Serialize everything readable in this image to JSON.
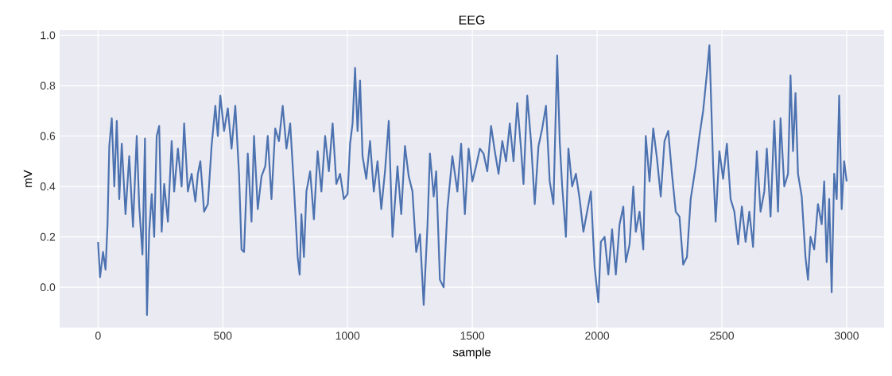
{
  "chart_data": {
    "type": "line",
    "title": "EEG",
    "xlabel": "sample",
    "ylabel": "mV",
    "xlim": [
      -154,
      3150
    ],
    "ylim": [
      -0.16,
      1.02
    ],
    "xticks": [
      0,
      500,
      1000,
      1500,
      2000,
      2500,
      3000
    ],
    "yticks": [
      {
        "value": 0,
        "label": "0.0"
      },
      {
        "value": 0.2,
        "label": "0.2"
      },
      {
        "value": 0.4,
        "label": "0.4"
      },
      {
        "value": 0.6,
        "label": "0.6"
      },
      {
        "value": 0.8,
        "label": "0.8"
      },
      {
        "value": 1.0,
        "label": "1.0"
      }
    ],
    "grid": true,
    "x": [
      0,
      8,
      20,
      30,
      38,
      45,
      55,
      65,
      75,
      85,
      95,
      110,
      125,
      140,
      155,
      165,
      178,
      188,
      196,
      205,
      215,
      225,
      235,
      245,
      255,
      265,
      280,
      295,
      305,
      320,
      335,
      345,
      360,
      375,
      390,
      400,
      410,
      425,
      440,
      455,
      470,
      480,
      490,
      505,
      520,
      535,
      550,
      565,
      575,
      585,
      600,
      615,
      625,
      640,
      655,
      670,
      680,
      695,
      710,
      725,
      740,
      755,
      770,
      785,
      800,
      808,
      815,
      825,
      835,
      850,
      865,
      880,
      895,
      910,
      925,
      940,
      955,
      970,
      985,
      1000,
      1010,
      1020,
      1030,
      1040,
      1050,
      1060,
      1075,
      1090,
      1105,
      1120,
      1135,
      1150,
      1165,
      1180,
      1200,
      1215,
      1230,
      1245,
      1260,
      1275,
      1290,
      1305,
      1320,
      1330,
      1345,
      1355,
      1370,
      1385,
      1400,
      1420,
      1440,
      1455,
      1470,
      1485,
      1500,
      1515,
      1530,
      1545,
      1560,
      1575,
      1590,
      1605,
      1620,
      1635,
      1650,
      1665,
      1680,
      1695,
      1705,
      1720,
      1735,
      1750,
      1765,
      1780,
      1795,
      1810,
      1825,
      1840,
      1850,
      1860,
      1875,
      1885,
      1900,
      1915,
      1930,
      1945,
      1960,
      1975,
      1990,
      2005,
      2015,
      2030,
      2045,
      2060,
      2075,
      2090,
      2105,
      2115,
      2130,
      2145,
      2155,
      2170,
      2185,
      2195,
      2210,
      2225,
      2240,
      2255,
      2270,
      2285,
      2300,
      2315,
      2330,
      2345,
      2360,
      2375,
      2395,
      2410,
      2425,
      2440,
      2450,
      2465,
      2475,
      2490,
      2505,
      2520,
      2535,
      2550,
      2565,
      2580,
      2595,
      2610,
      2625,
      2640,
      2655,
      2670,
      2680,
      2695,
      2710,
      2725,
      2735,
      2750,
      2765,
      2775,
      2785,
      2795,
      2805,
      2820,
      2835,
      2845,
      2855,
      2870,
      2885,
      2900,
      2910,
      2920,
      2930,
      2940,
      2950,
      2960,
      2970,
      2980,
      2990,
      3000
    ],
    "series": [
      {
        "color": "#4c72b0",
        "values": [
          0.18,
          0.04,
          0.14,
          0.07,
          0.25,
          0.56,
          0.67,
          0.4,
          0.66,
          0.35,
          0.57,
          0.29,
          0.52,
          0.24,
          0.6,
          0.32,
          0.13,
          0.59,
          -0.11,
          0.22,
          0.37,
          0.2,
          0.6,
          0.64,
          0.22,
          0.41,
          0.26,
          0.58,
          0.38,
          0.55,
          0.4,
          0.65,
          0.38,
          0.45,
          0.34,
          0.45,
          0.5,
          0.3,
          0.33,
          0.56,
          0.72,
          0.6,
          0.76,
          0.62,
          0.71,
          0.55,
          0.72,
          0.45,
          0.15,
          0.14,
          0.53,
          0.26,
          0.6,
          0.31,
          0.44,
          0.48,
          0.6,
          0.35,
          0.63,
          0.58,
          0.72,
          0.55,
          0.65,
          0.4,
          0.12,
          0.05,
          0.29,
          0.12,
          0.38,
          0.46,
          0.27,
          0.54,
          0.38,
          0.6,
          0.46,
          0.65,
          0.41,
          0.45,
          0.35,
          0.37,
          0.57,
          0.65,
          0.87,
          0.62,
          0.82,
          0.52,
          0.43,
          0.58,
          0.38,
          0.5,
          0.31,
          0.46,
          0.66,
          0.2,
          0.48,
          0.29,
          0.56,
          0.44,
          0.38,
          0.14,
          0.21,
          -0.07,
          0.24,
          0.53,
          0.36,
          0.46,
          0.03,
          0.0,
          0.31,
          0.52,
          0.38,
          0.57,
          0.29,
          0.55,
          0.42,
          0.48,
          0.55,
          0.53,
          0.46,
          0.64,
          0.54,
          0.45,
          0.58,
          0.5,
          0.65,
          0.5,
          0.73,
          0.55,
          0.41,
          0.76,
          0.58,
          0.33,
          0.56,
          0.63,
          0.72,
          0.42,
          0.33,
          0.92,
          0.58,
          0.4,
          0.2,
          0.55,
          0.4,
          0.45,
          0.35,
          0.22,
          0.3,
          0.38,
          0.08,
          -0.06,
          0.18,
          0.2,
          0.05,
          0.23,
          0.05,
          0.25,
          0.32,
          0.1,
          0.17,
          0.4,
          0.22,
          0.3,
          0.15,
          0.6,
          0.42,
          0.63,
          0.51,
          0.36,
          0.58,
          0.62,
          0.45,
          0.3,
          0.28,
          0.09,
          0.12,
          0.35,
          0.48,
          0.6,
          0.7,
          0.85,
          0.96,
          0.48,
          0.26,
          0.54,
          0.43,
          0.57,
          0.35,
          0.3,
          0.17,
          0.32,
          0.18,
          0.3,
          0.16,
          0.54,
          0.3,
          0.38,
          0.55,
          0.28,
          0.66,
          0.3,
          0.67,
          0.4,
          0.45,
          0.84,
          0.54,
          0.77,
          0.45,
          0.36,
          0.12,
          0.03,
          0.2,
          0.15,
          0.33,
          0.25,
          0.42,
          0.1,
          0.35,
          -0.02,
          0.45,
          0.35,
          0.76,
          0.31,
          0.5,
          0.42
        ]
      }
    ]
  }
}
